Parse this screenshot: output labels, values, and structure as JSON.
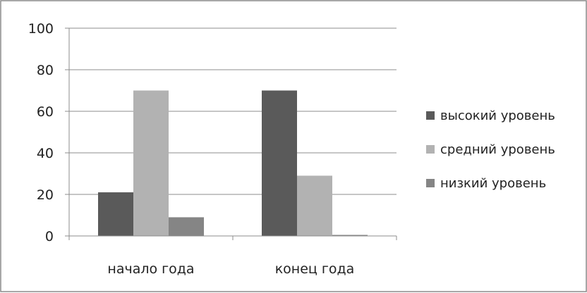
{
  "chart_data": {
    "type": "bar",
    "categories": [
      "начало года",
      "конец года"
    ],
    "series": [
      {
        "name": "высокий уровень",
        "values": [
          21,
          70
        ],
        "color": "#5a5a5a"
      },
      {
        "name": "средний уровень",
        "values": [
          70,
          29
        ],
        "color": "#b2b2b2"
      },
      {
        "name": "низкий уровень",
        "values": [
          9,
          0.5
        ],
        "color": "#858585"
      }
    ],
    "title": "",
    "xlabel": "",
    "ylabel": "",
    "ylim": [
      0,
      100
    ],
    "yticks": [
      0,
      20,
      40,
      60,
      80,
      100
    ],
    "grid": true,
    "legend_position": "right"
  }
}
